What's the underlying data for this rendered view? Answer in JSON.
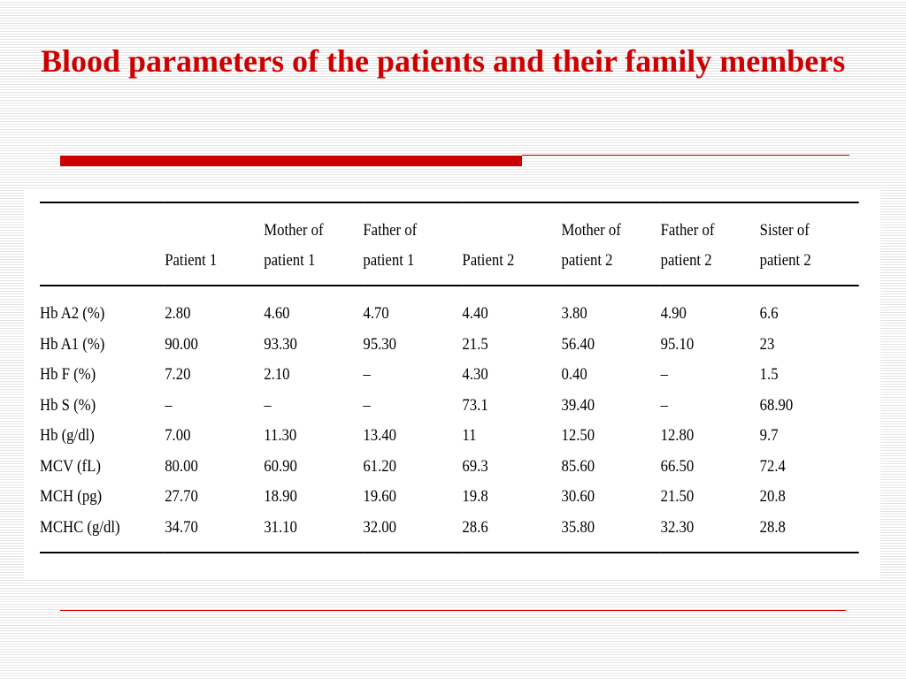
{
  "slide": {
    "title": "Blood parameters of the patients and their family members",
    "colors": {
      "title": "#cc0000",
      "accent": "#cc0000",
      "rule": "#000000"
    }
  },
  "table": {
    "headers": [
      [
        "",
        ""
      ],
      [
        "",
        "Patient 1"
      ],
      [
        "Mother of",
        "patient 1"
      ],
      [
        "Father of",
        "patient 1"
      ],
      [
        "",
        "Patient 2"
      ],
      [
        "Mother of",
        "patient 2"
      ],
      [
        "Father of",
        "patient 2"
      ],
      [
        "Sister of",
        "patient 2"
      ]
    ],
    "rows": [
      {
        "param": "Hb A2 (%)",
        "values": [
          "2.80",
          "4.60",
          "4.70",
          "4.40",
          "3.80",
          "4.90",
          "6.6"
        ]
      },
      {
        "param": "Hb A1 (%)",
        "values": [
          "90.00",
          "93.30",
          "95.30",
          "21.5",
          "56.40",
          "95.10",
          "23"
        ]
      },
      {
        "param": "Hb F (%)",
        "values": [
          "7.20",
          "2.10",
          "–",
          "4.30",
          "0.40",
          "–",
          "1.5"
        ]
      },
      {
        "param": "Hb S (%)",
        "values": [
          "–",
          "–",
          "–",
          "73.1",
          "39.40",
          "–",
          "68.90"
        ]
      },
      {
        "param": "Hb (g/dl)",
        "values": [
          "7.00",
          "11.30",
          "13.40",
          "11",
          "12.50",
          "12.80",
          "9.7"
        ]
      },
      {
        "param": "MCV (fL)",
        "values": [
          "80.00",
          "60.90",
          "61.20",
          "69.3",
          "85.60",
          "66.50",
          "72.4"
        ]
      },
      {
        "param": "MCH (pg)",
        "values": [
          "27.70",
          "18.90",
          "19.60",
          "19.8",
          "30.60",
          "21.50",
          "20.8"
        ]
      },
      {
        "param": "MCHC (g/dl)",
        "values": [
          "34.70",
          "31.10",
          "32.00",
          "28.6",
          "35.80",
          "32.30",
          "28.8"
        ]
      }
    ]
  }
}
